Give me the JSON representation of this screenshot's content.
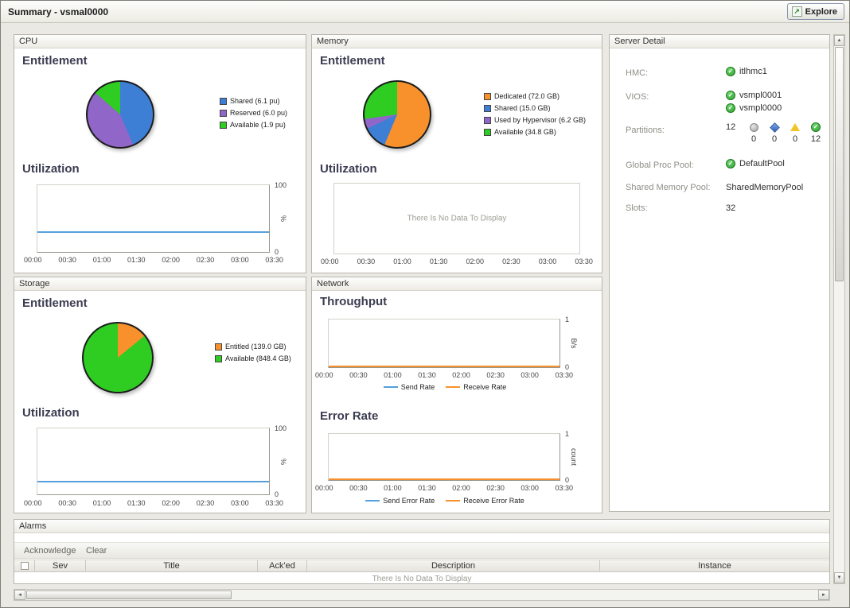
{
  "window": {
    "title": "Summary -  vsmal0000",
    "explore_label": "Explore"
  },
  "panels": {
    "cpu": {
      "title": "CPU",
      "entitlement": "Entitlement",
      "utilization": "Utilization"
    },
    "memory": {
      "title": "Memory",
      "entitlement": "Entitlement",
      "utilization": "Utilization"
    },
    "storage": {
      "title": "Storage",
      "entitlement": "Entitlement",
      "utilization": "Utilization"
    },
    "network": {
      "title": "Network",
      "throughput": "Throughput",
      "error_rate": "Error Rate"
    }
  },
  "server_detail": {
    "title": "Server Detail",
    "hmc_label": "HMC:",
    "hmc_value": "itlhmc1",
    "vios_label": "VIOS:",
    "vios_values": [
      "vsmpl0001",
      "vsmpl0000"
    ],
    "partitions_label": "Partitions:",
    "partitions_total": "12",
    "partition_counts": [
      "0",
      "0",
      "0",
      "12"
    ],
    "global_proc_pool_label": "Global Proc Pool:",
    "global_proc_pool_value": "DefaultPool",
    "shared_memory_pool_label": "Shared Memory Pool:",
    "shared_memory_pool_value": "SharedMemoryPool",
    "slots_label": "Slots:",
    "slots_value": "32"
  },
  "alarms": {
    "title": "Alarms",
    "acknowledge_label": "Acknowledge",
    "clear_label": "Clear",
    "columns": [
      "Sev",
      "Title",
      "Ack'ed",
      "Description",
      "Instance"
    ],
    "no_data": "There Is No Data To Display"
  },
  "chart_data": [
    {
      "id": "cpu-entitlement",
      "type": "pie",
      "title": "CPU Entitlement",
      "slices": [
        {
          "label": "Shared (6.1 pu)",
          "value": 6.1,
          "color": "#3e7fd6"
        },
        {
          "label": "Reserved (6.0 pu)",
          "value": 6.0,
          "color": "#9066c8"
        },
        {
          "label": "Available (1.9 pu)",
          "value": 1.9,
          "color": "#2fcc22"
        }
      ]
    },
    {
      "id": "memory-entitlement",
      "type": "pie",
      "title": "Memory Entitlement",
      "slices": [
        {
          "label": "Dedicated (72.0 GB)",
          "value": 72.0,
          "color": "#f8912c"
        },
        {
          "label": "Shared (15.0 GB)",
          "value": 15.0,
          "color": "#3e7fd6"
        },
        {
          "label": "Used by Hypervisor (6.2 GB)",
          "value": 6.2,
          "color": "#9066c8"
        },
        {
          "label": "Available (34.8 GB)",
          "value": 34.8,
          "color": "#2fcc22"
        }
      ]
    },
    {
      "id": "storage-entitlement",
      "type": "pie",
      "title": "Storage Entitlement",
      "slices": [
        {
          "label": "Entitled (139.0 GB)",
          "value": 139.0,
          "color": "#f8912c"
        },
        {
          "label": "Available (848.4 GB)",
          "value": 848.4,
          "color": "#2fcc22"
        }
      ]
    },
    {
      "id": "cpu-utilization",
      "type": "line",
      "title": "CPU Utilization",
      "ylabel": "%",
      "ylim": [
        0,
        100
      ],
      "grid": false,
      "legend_position": "none",
      "x": [
        "00:00",
        "00:30",
        "01:00",
        "01:30",
        "02:00",
        "02:30",
        "03:00",
        "03:30"
      ],
      "series": [
        {
          "name": "Utilization",
          "color": "#55a0dc",
          "values": [
            28,
            28,
            28,
            28,
            28,
            28,
            28,
            28
          ]
        }
      ]
    },
    {
      "id": "memory-utilization",
      "type": "line",
      "title": "Memory Utilization",
      "ylabel": "%",
      "ylim": [
        0,
        100
      ],
      "grid": false,
      "legend_position": "none",
      "x": [
        "00:00",
        "00:30",
        "01:00",
        "01:30",
        "02:00",
        "02:30",
        "03:00",
        "03:30"
      ],
      "series": [],
      "no_data": "There Is No Data To Display"
    },
    {
      "id": "storage-utilization",
      "type": "line",
      "title": "Storage Utilization",
      "ylabel": "%",
      "ylim": [
        0,
        100
      ],
      "grid": false,
      "legend_position": "none",
      "x": [
        "00:00",
        "00:30",
        "01:00",
        "01:30",
        "02:00",
        "02:30",
        "03:00",
        "03:30"
      ],
      "series": [
        {
          "name": "Utilization",
          "color": "#55a0dc",
          "values": [
            18,
            18,
            18,
            18,
            18,
            18,
            18,
            18
          ]
        }
      ]
    },
    {
      "id": "network-throughput",
      "type": "line",
      "title": "Network Throughput",
      "ylabel": "B/s",
      "ylim": [
        0,
        1
      ],
      "grid": false,
      "legend_position": "bottom",
      "x": [
        "00:00",
        "00:30",
        "01:00",
        "01:30",
        "02:00",
        "02:30",
        "03:00",
        "03:30"
      ],
      "series": [
        {
          "name": "Send Rate",
          "color": "#55a0dc",
          "values": [
            0,
            0,
            0,
            0,
            0,
            0,
            0,
            0
          ]
        },
        {
          "name": "Receive Rate",
          "color": "#f8912c",
          "values": [
            0,
            0,
            0,
            0,
            0,
            0,
            0,
            0
          ]
        }
      ]
    },
    {
      "id": "network-error-rate",
      "type": "line",
      "title": "Network Error Rate",
      "ylabel": "count",
      "ylim": [
        0,
        1
      ],
      "grid": false,
      "legend_position": "bottom",
      "x": [
        "00:00",
        "00:30",
        "01:00",
        "01:30",
        "02:00",
        "02:30",
        "03:00",
        "03:30"
      ],
      "series": [
        {
          "name": "Send Error Rate",
          "color": "#55a0dc",
          "values": [
            0,
            0,
            0,
            0,
            0,
            0,
            0,
            0
          ]
        },
        {
          "name": "Receive Error Rate",
          "color": "#f8912c",
          "values": [
            0,
            0,
            0,
            0,
            0,
            0,
            0,
            0
          ]
        }
      ]
    }
  ]
}
